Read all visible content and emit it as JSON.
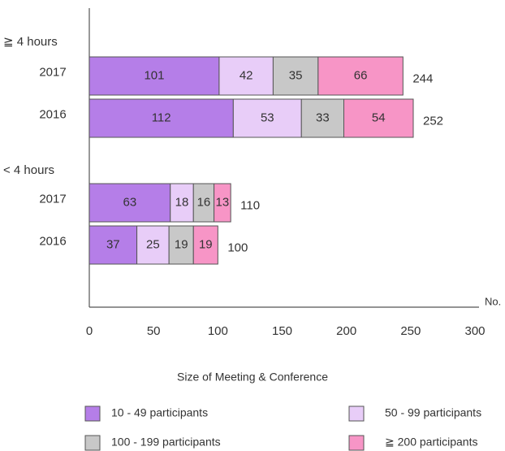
{
  "chart_data": {
    "type": "stacked-barh",
    "group_labels": [
      "≧ 4 hours",
      "< 4 hours"
    ],
    "categories": [
      "2017",
      "2016",
      "2017",
      "2016"
    ],
    "series": [
      {
        "name": "10 - 49 participants",
        "color": "#b57ee8",
        "values": [
          101,
          112,
          63,
          37
        ]
      },
      {
        "name": "50 - 99 participants",
        "color": "#e8cdf8",
        "values": [
          42,
          53,
          18,
          25
        ]
      },
      {
        "name": "100 - 199 participants",
        "color": "#c8c8c8",
        "values": [
          35,
          33,
          16,
          19
        ]
      },
      {
        "name": "≧ 200 participants",
        "color": "#f795c6",
        "values": [
          66,
          54,
          13,
          19
        ]
      }
    ],
    "totals": [
      244,
      252,
      110,
      100
    ],
    "xlim": [
      0,
      300
    ],
    "xticks": [
      0,
      50,
      100,
      150,
      200,
      250,
      300
    ],
    "x_unit": "No.",
    "legend_title": "Size of Meeting & Conference"
  }
}
